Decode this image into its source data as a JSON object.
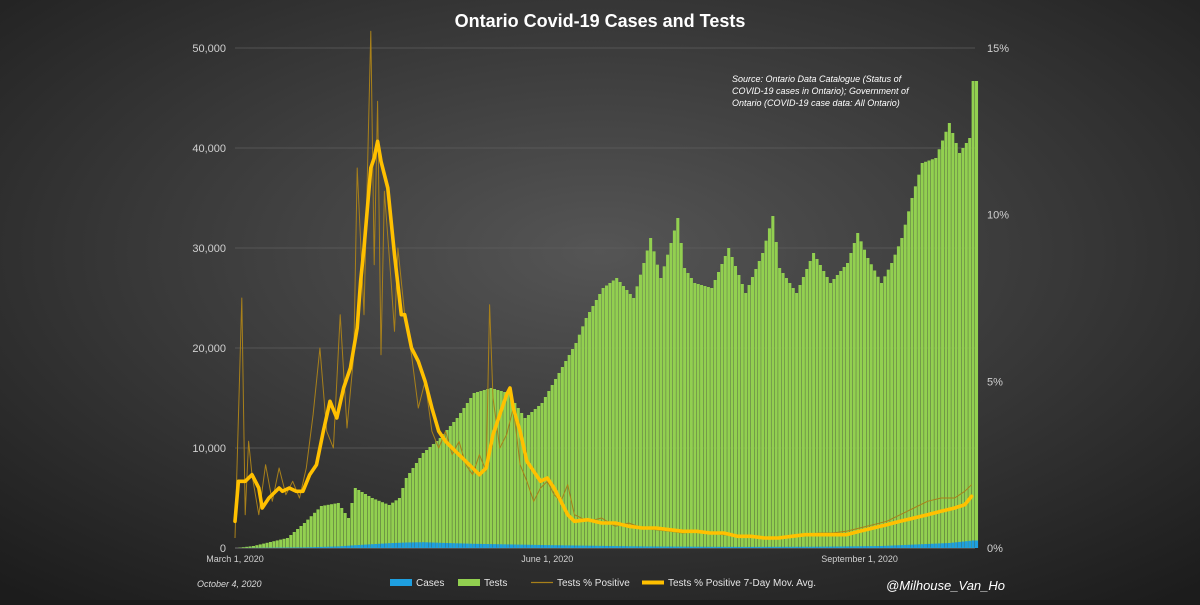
{
  "chart_data": {
    "type": "bar",
    "title": "Ontario Covid-19 Cases and Tests",
    "source_note": [
      "Source: Ontario Data Catalogue (Status of",
      "COVID-19 cases in Ontario); Government of",
      "Ontario (COVID-19 case data: All Ontario)"
    ],
    "date_stamp": "October 4, 2020",
    "credit": "@Milhouse_Van_Ho",
    "x_ticks": [
      {
        "label": "March 1, 2020",
        "day": 0
      },
      {
        "label": "June 1, 2020",
        "day": 92
      },
      {
        "label": "September 1, 2020",
        "day": 184
      }
    ],
    "x_range": [
      0,
      218
    ],
    "y_left": {
      "range": [
        0,
        50000
      ],
      "ticks": [
        "0",
        "10,000",
        "20,000",
        "30,000",
        "40,000",
        "50,000"
      ],
      "tick_values": [
        0,
        10000,
        20000,
        30000,
        40000,
        50000
      ]
    },
    "y_right": {
      "range": [
        0,
        15
      ],
      "ticks": [
        "0%",
        "5%",
        "10%",
        "15%"
      ],
      "tick_values": [
        0,
        5,
        10,
        15
      ]
    },
    "legend": [
      {
        "label": "Cases",
        "color": "#1e9fe0",
        "kind": "bar"
      },
      {
        "label": "Tests",
        "color": "#92d050",
        "kind": "bar"
      },
      {
        "label": "Tests % Positive",
        "color": "#a8801a",
        "kind": "thin-line"
      },
      {
        "label": "Tests % Positive 7-Day Mov. Avg.",
        "color": "#ffc000",
        "kind": "thick-line"
      }
    ],
    "series": [
      {
        "name": "Tests",
        "axis": "left",
        "color": "#92d050",
        "points": [
          [
            0,
            0
          ],
          [
            5,
            200
          ],
          [
            10,
            600
          ],
          [
            15,
            1000
          ],
          [
            20,
            2500
          ],
          [
            25,
            4200
          ],
          [
            30,
            4500
          ],
          [
            33,
            3000
          ],
          [
            35,
            6000
          ],
          [
            40,
            5000
          ],
          [
            45,
            4300
          ],
          [
            48,
            5000
          ],
          [
            50,
            7000
          ],
          [
            55,
            9500
          ],
          [
            60,
            11000
          ],
          [
            65,
            13000
          ],
          [
            70,
            15500
          ],
          [
            75,
            16000
          ],
          [
            80,
            15500
          ],
          [
            85,
            13000
          ],
          [
            90,
            14500
          ],
          [
            95,
            17500
          ],
          [
            100,
            20500
          ],
          [
            103,
            23000
          ],
          [
            108,
            26000
          ],
          [
            112,
            27000
          ],
          [
            117,
            25000
          ],
          [
            120,
            28500
          ],
          [
            122,
            31000
          ],
          [
            125,
            27000
          ],
          [
            128,
            30500
          ],
          [
            130,
            33000
          ],
          [
            132,
            28000
          ],
          [
            135,
            26500
          ],
          [
            140,
            26000
          ],
          [
            145,
            30000
          ],
          [
            150,
            25500
          ],
          [
            155,
            29500
          ],
          [
            158,
            33200
          ],
          [
            160,
            28000
          ],
          [
            165,
            25500
          ],
          [
            170,
            29500
          ],
          [
            175,
            26500
          ],
          [
            180,
            28500
          ],
          [
            183,
            31500
          ],
          [
            186,
            29000
          ],
          [
            190,
            26500
          ],
          [
            193,
            28500
          ],
          [
            196,
            31000
          ],
          [
            199,
            35000
          ],
          [
            202,
            38500
          ],
          [
            206,
            39000
          ],
          [
            210,
            42500
          ],
          [
            213,
            39500
          ],
          [
            216,
            41000
          ],
          [
            217,
            46700
          ]
        ]
      },
      {
        "name": "Cases",
        "axis": "left",
        "color": "#1e9fe0",
        "points": [
          [
            0,
            0
          ],
          [
            20,
            60
          ],
          [
            30,
            160
          ],
          [
            35,
            280
          ],
          [
            45,
            480
          ],
          [
            50,
            550
          ],
          [
            55,
            580
          ],
          [
            60,
            520
          ],
          [
            70,
            420
          ],
          [
            80,
            360
          ],
          [
            90,
            300
          ],
          [
            100,
            250
          ],
          [
            110,
            200
          ],
          [
            120,
            160
          ],
          [
            130,
            140
          ],
          [
            140,
            120
          ],
          [
            150,
            110
          ],
          [
            160,
            120
          ],
          [
            170,
            130
          ],
          [
            180,
            160
          ],
          [
            190,
            200
          ],
          [
            200,
            350
          ],
          [
            210,
            500
          ],
          [
            217,
            750
          ]
        ]
      },
      {
        "name": "Tests % Positive",
        "axis": "right",
        "color": "#a8801a",
        "points": [
          [
            0,
            0.3
          ],
          [
            2,
            7.5
          ],
          [
            3,
            1.0
          ],
          [
            4,
            3.2
          ],
          [
            5,
            2.2
          ],
          [
            7,
            1.0
          ],
          [
            9,
            2.5
          ],
          [
            11,
            1.4
          ],
          [
            13,
            2.4
          ],
          [
            15,
            1.6
          ],
          [
            17,
            2.0
          ],
          [
            19,
            1.5
          ],
          [
            21,
            2.4
          ],
          [
            23,
            4.0
          ],
          [
            25,
            6.0
          ],
          [
            27,
            3.5
          ],
          [
            29,
            3.0
          ],
          [
            31,
            7.0
          ],
          [
            33,
            3.6
          ],
          [
            35,
            5.8
          ],
          [
            36,
            11.4
          ],
          [
            38,
            7.0
          ],
          [
            40,
            15.5
          ],
          [
            41,
            8.5
          ],
          [
            42,
            13.4
          ],
          [
            43,
            5.8
          ],
          [
            44,
            10.7
          ],
          [
            46,
            8.0
          ],
          [
            47,
            6.5
          ],
          [
            48,
            9.0
          ],
          [
            50,
            7.0
          ],
          [
            52,
            5.8
          ],
          [
            54,
            4.2
          ],
          [
            56,
            5.0
          ],
          [
            58,
            3.5
          ],
          [
            60,
            3.0
          ],
          [
            62,
            3.5
          ],
          [
            64,
            2.8
          ],
          [
            66,
            3.2
          ],
          [
            68,
            2.5
          ],
          [
            70,
            2.2
          ],
          [
            72,
            2.8
          ],
          [
            74,
            2.3
          ],
          [
            75,
            7.3
          ],
          [
            76,
            4.5
          ],
          [
            78,
            3.0
          ],
          [
            80,
            3.4
          ],
          [
            82,
            4.2
          ],
          [
            84,
            2.5
          ],
          [
            86,
            2.0
          ],
          [
            88,
            1.4
          ],
          [
            90,
            1.8
          ],
          [
            92,
            2.0
          ],
          [
            94,
            1.6
          ],
          [
            96,
            1.4
          ],
          [
            98,
            1.9
          ],
          [
            100,
            1.0
          ],
          [
            104,
            0.8
          ],
          [
            108,
            0.9
          ],
          [
            112,
            0.65
          ],
          [
            116,
            0.75
          ],
          [
            120,
            0.6
          ],
          [
            124,
            0.55
          ],
          [
            128,
            0.5
          ],
          [
            132,
            0.45
          ],
          [
            136,
            0.5
          ],
          [
            140,
            0.45
          ],
          [
            144,
            0.4
          ],
          [
            148,
            0.35
          ],
          [
            152,
            0.35
          ],
          [
            156,
            0.3
          ],
          [
            160,
            0.3
          ],
          [
            164,
            0.35
          ],
          [
            168,
            0.4
          ],
          [
            172,
            0.45
          ],
          [
            176,
            0.45
          ],
          [
            180,
            0.5
          ],
          [
            184,
            0.6
          ],
          [
            188,
            0.7
          ],
          [
            192,
            0.8
          ],
          [
            196,
            1.0
          ],
          [
            200,
            1.2
          ],
          [
            204,
            1.4
          ],
          [
            208,
            1.5
          ],
          [
            212,
            1.5
          ],
          [
            215,
            1.7
          ],
          [
            217,
            1.9
          ]
        ]
      },
      {
        "name": "Tests % Positive 7-Day Mov. Avg.",
        "axis": "right",
        "color": "#ffc000",
        "points": [
          [
            0,
            0.8
          ],
          [
            1,
            2.0
          ],
          [
            3,
            2.0
          ],
          [
            5,
            2.2
          ],
          [
            7,
            1.8
          ],
          [
            8,
            1.2
          ],
          [
            10,
            1.5
          ],
          [
            13,
            1.8
          ],
          [
            14,
            1.7
          ],
          [
            16,
            1.8
          ],
          [
            18,
            1.7
          ],
          [
            20,
            1.7
          ],
          [
            22,
            2.2
          ],
          [
            24,
            2.5
          ],
          [
            26,
            3.5
          ],
          [
            28,
            4.4
          ],
          [
            30,
            3.9
          ],
          [
            32,
            4.8
          ],
          [
            34,
            5.4
          ],
          [
            36,
            6.6
          ],
          [
            37,
            8.0
          ],
          [
            38,
            9.0
          ],
          [
            40,
            11.4
          ],
          [
            41,
            11.7
          ],
          [
            42,
            12.2
          ],
          [
            43,
            11.6
          ],
          [
            45,
            10.8
          ],
          [
            47,
            8.8
          ],
          [
            49,
            7.0
          ],
          [
            50,
            7.0
          ],
          [
            52,
            6.0
          ],
          [
            54,
            5.6
          ],
          [
            56,
            5.0
          ],
          [
            58,
            4.2
          ],
          [
            60,
            3.5
          ],
          [
            62,
            3.2
          ],
          [
            64,
            3.0
          ],
          [
            66,
            2.8
          ],
          [
            68,
            2.6
          ],
          [
            70,
            2.4
          ],
          [
            72,
            2.2
          ],
          [
            74,
            2.4
          ],
          [
            76,
            3.4
          ],
          [
            78,
            4.0
          ],
          [
            80,
            4.6
          ],
          [
            81,
            4.8
          ],
          [
            82,
            4.2
          ],
          [
            84,
            3.5
          ],
          [
            86,
            2.6
          ],
          [
            88,
            2.3
          ],
          [
            90,
            2.0
          ],
          [
            92,
            2.1
          ],
          [
            94,
            1.8
          ],
          [
            96,
            1.4
          ],
          [
            98,
            1.0
          ],
          [
            100,
            0.8
          ],
          [
            104,
            0.85
          ],
          [
            108,
            0.75
          ],
          [
            112,
            0.75
          ],
          [
            116,
            0.65
          ],
          [
            120,
            0.6
          ],
          [
            124,
            0.6
          ],
          [
            128,
            0.55
          ],
          [
            132,
            0.5
          ],
          [
            136,
            0.5
          ],
          [
            140,
            0.45
          ],
          [
            144,
            0.45
          ],
          [
            148,
            0.35
          ],
          [
            152,
            0.35
          ],
          [
            156,
            0.3
          ],
          [
            160,
            0.3
          ],
          [
            164,
            0.35
          ],
          [
            168,
            0.4
          ],
          [
            172,
            0.4
          ],
          [
            176,
            0.4
          ],
          [
            180,
            0.4
          ],
          [
            184,
            0.5
          ],
          [
            188,
            0.6
          ],
          [
            192,
            0.7
          ],
          [
            196,
            0.8
          ],
          [
            200,
            0.9
          ],
          [
            204,
            1.0
          ],
          [
            208,
            1.1
          ],
          [
            212,
            1.2
          ],
          [
            215,
            1.3
          ],
          [
            217,
            1.55
          ]
        ]
      }
    ]
  }
}
